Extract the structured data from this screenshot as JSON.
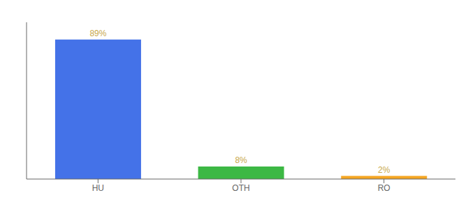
{
  "chart_data": {
    "type": "bar",
    "categories": [
      "HU",
      "OTH",
      "RO"
    ],
    "values": [
      89,
      8,
      2
    ],
    "value_labels": [
      "89%",
      "8%",
      "2%"
    ],
    "colors": [
      "#4472e8",
      "#3cb844",
      "#f5a623"
    ],
    "ylim": [
      0,
      100
    ],
    "grid": false,
    "data_labels": true,
    "tick_labels": "x"
  }
}
